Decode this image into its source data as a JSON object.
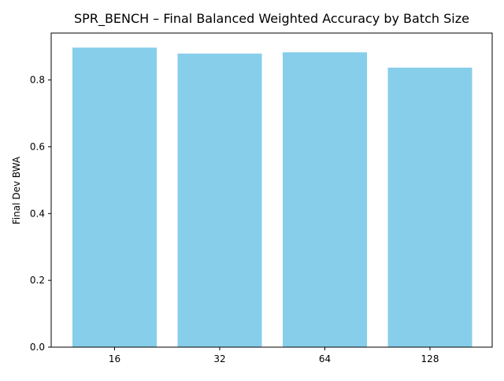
{
  "chart_data": {
    "type": "bar",
    "title": "SPR_BENCH – Final Balanced Weighted Accuracy by Batch Size",
    "xlabel": "",
    "ylabel": "Final Dev BWA",
    "categories": [
      "16",
      "32",
      "64",
      "128"
    ],
    "values": [
      0.897,
      0.879,
      0.883,
      0.837
    ],
    "ylim": [
      0,
      0.9405
    ],
    "yticks": [
      0.0,
      0.2,
      0.4,
      0.6,
      0.8
    ],
    "ytick_labels": [
      "0.0",
      "0.2",
      "0.4",
      "0.6",
      "0.8"
    ],
    "grid": false,
    "legend": "none",
    "bar_color": "#87ceeb"
  }
}
